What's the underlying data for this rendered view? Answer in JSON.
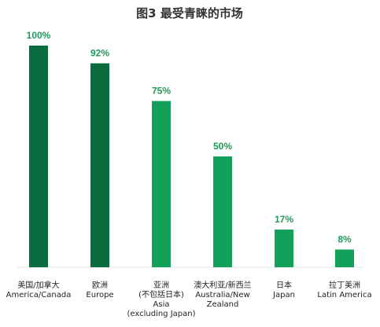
{
  "chart_data": {
    "type": "bar",
    "title": "图3  最受青睐的市场",
    "ylim": [
      0,
      100
    ],
    "grid": false,
    "legend": "none",
    "colors": {
      "dark": "#0a6b3f",
      "light": "#12a05a",
      "label": "#1f9a56"
    },
    "categories": [
      {
        "lines": [
          "美国/加拿大",
          "America/Canada"
        ],
        "value": 100,
        "label": "100%",
        "shade": "dark"
      },
      {
        "lines": [
          "欧洲",
          "Europe"
        ],
        "value": 92,
        "label": "92%",
        "shade": "dark"
      },
      {
        "lines": [
          "亚洲",
          "(不包括日本)",
          "Asia",
          "(excluding Japan)"
        ],
        "value": 75,
        "label": "75%",
        "shade": "light"
      },
      {
        "lines": [
          "澳大利亚/新西兰",
          "Australia/New",
          "Zealand"
        ],
        "value": 50,
        "label": "50%",
        "shade": "light"
      },
      {
        "lines": [
          "日本",
          "Japan"
        ],
        "value": 17,
        "label": "17%",
        "shade": "light"
      },
      {
        "lines": [
          "拉丁美洲",
          "Latin America"
        ],
        "value": 8,
        "label": "8%",
        "shade": "light"
      }
    ]
  }
}
